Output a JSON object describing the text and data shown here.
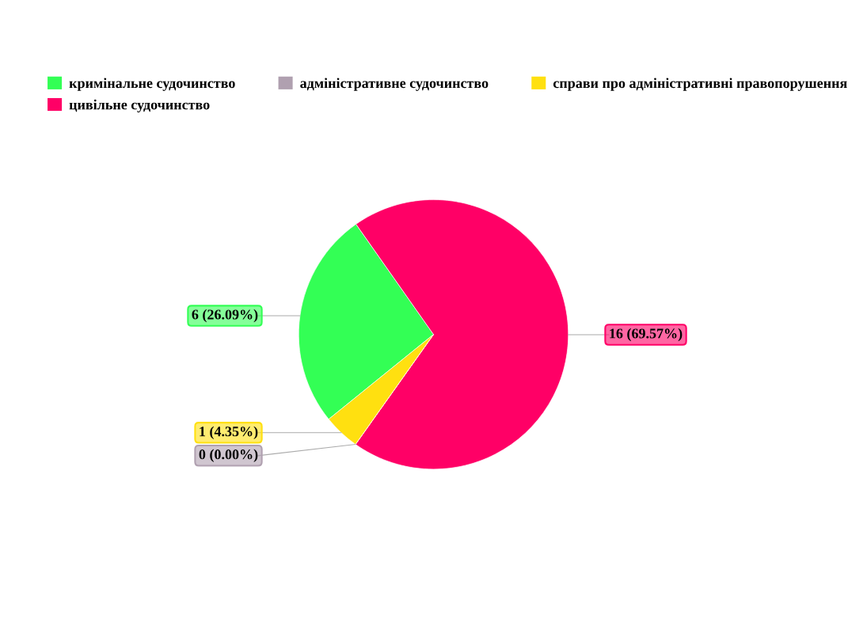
{
  "chart_data": {
    "type": "pie",
    "categories": [
      "кримінальне судочинство",
      "цивільне судочинство",
      "адміністративне судочинство",
      "справи про адміністративні правопорушення"
    ],
    "values": [
      6,
      16,
      0,
      1
    ],
    "colors": [
      "#33ff55",
      "#ff0066",
      "#b0a0b0",
      "#ffe010"
    ],
    "value_labels": [
      "6 (26.09%)",
      "16 (69.57%)",
      "0 (0.00%)",
      "1 (4.35%)"
    ],
    "legend": "top"
  }
}
